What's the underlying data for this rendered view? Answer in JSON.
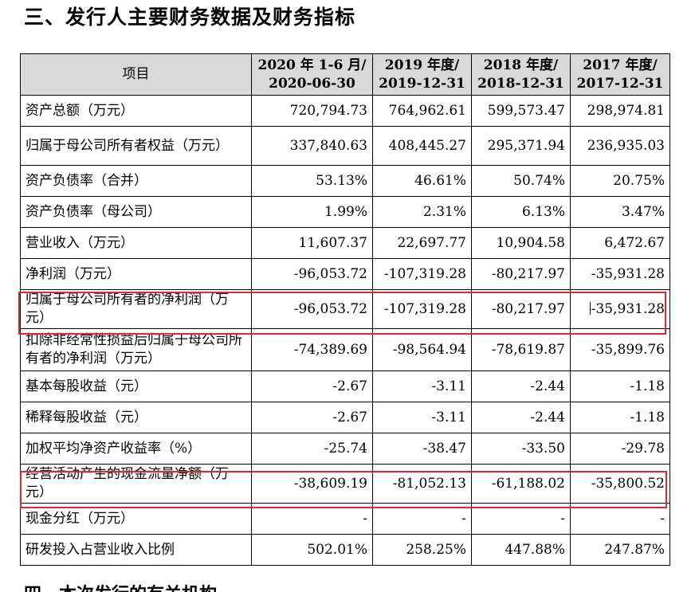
{
  "heading": "三、发行人主要财务数据及财务指标",
  "table": {
    "headers": [
      {
        "l1": "项目",
        "l2": ""
      },
      {
        "l1": "2020 年 1-6 月/",
        "l2": "2020-06-30"
      },
      {
        "l1": "2019 年度/",
        "l2": "2019-12-31"
      },
      {
        "l1": "2018 年度/",
        "l2": "2018-12-31"
      },
      {
        "l1": "2017 年度/",
        "l2": "2017-12-31"
      }
    ],
    "rows": [
      {
        "label": "资产总额（万元）",
        "values": [
          "720,794.73",
          "764,962.61",
          "599,573.47",
          "298,974.81"
        ]
      },
      {
        "label": "归属于母公司所有者权益（万元）",
        "values": [
          "337,840.63",
          "408,445.27",
          "295,371.94",
          "236,935.03"
        ]
      },
      {
        "label": "资产负债率（合并）",
        "values": [
          "53.13%",
          "46.61%",
          "50.74%",
          "20.75%"
        ]
      },
      {
        "label": "资产负债率（母公司）",
        "values": [
          "1.99%",
          "2.31%",
          "6.13%",
          "3.47%"
        ]
      },
      {
        "label": "营业收入（万元）",
        "values": [
          "11,607.37",
          "22,697.77",
          "10,904.58",
          "6,472.67"
        ]
      },
      {
        "label": "净利润（万元）",
        "values": [
          "-96,053.72",
          "-107,319.28",
          "-80,217.97",
          "-35,931.28"
        ]
      },
      {
        "label": "归属于母公司所有者的净利润（万元）",
        "values": [
          "-96,053.72",
          "-107,319.28",
          "-80,217.97",
          "-35,931.28"
        ]
      },
      {
        "label": "扣除非经常性损益后归属于母公司所有者的净利润（万元）",
        "values": [
          "-74,389.69",
          "-98,564.94",
          "-78,619.87",
          "-35,899.76"
        ]
      },
      {
        "label": "基本每股收益（元）",
        "values": [
          "-2.67",
          "-3.11",
          "-2.44",
          "-1.18"
        ]
      },
      {
        "label": "稀释每股收益（元）",
        "values": [
          "-2.67",
          "-3.11",
          "-2.44",
          "-1.18"
        ]
      },
      {
        "label": "加权平均净资产收益率（%）",
        "values": [
          "-25.74",
          "-38.47",
          "-33.50",
          "-29.78"
        ]
      },
      {
        "label": "经营活动产生的现金流量净额（万元）",
        "values": [
          "-38,609.19",
          "-81,052.13",
          "-61,188.02",
          "-35,800.52"
        ]
      },
      {
        "label": "现金分红（万元）",
        "values": [
          "-",
          "-",
          "-",
          "-"
        ]
      },
      {
        "label": "研发投入占营业收入比例",
        "values": [
          "502.01%",
          "258.25%",
          "447.88%",
          "247.87%"
        ]
      }
    ]
  },
  "highlight_color": "#e0262e",
  "cutoff_text": "四、本次发行的有关机构"
}
